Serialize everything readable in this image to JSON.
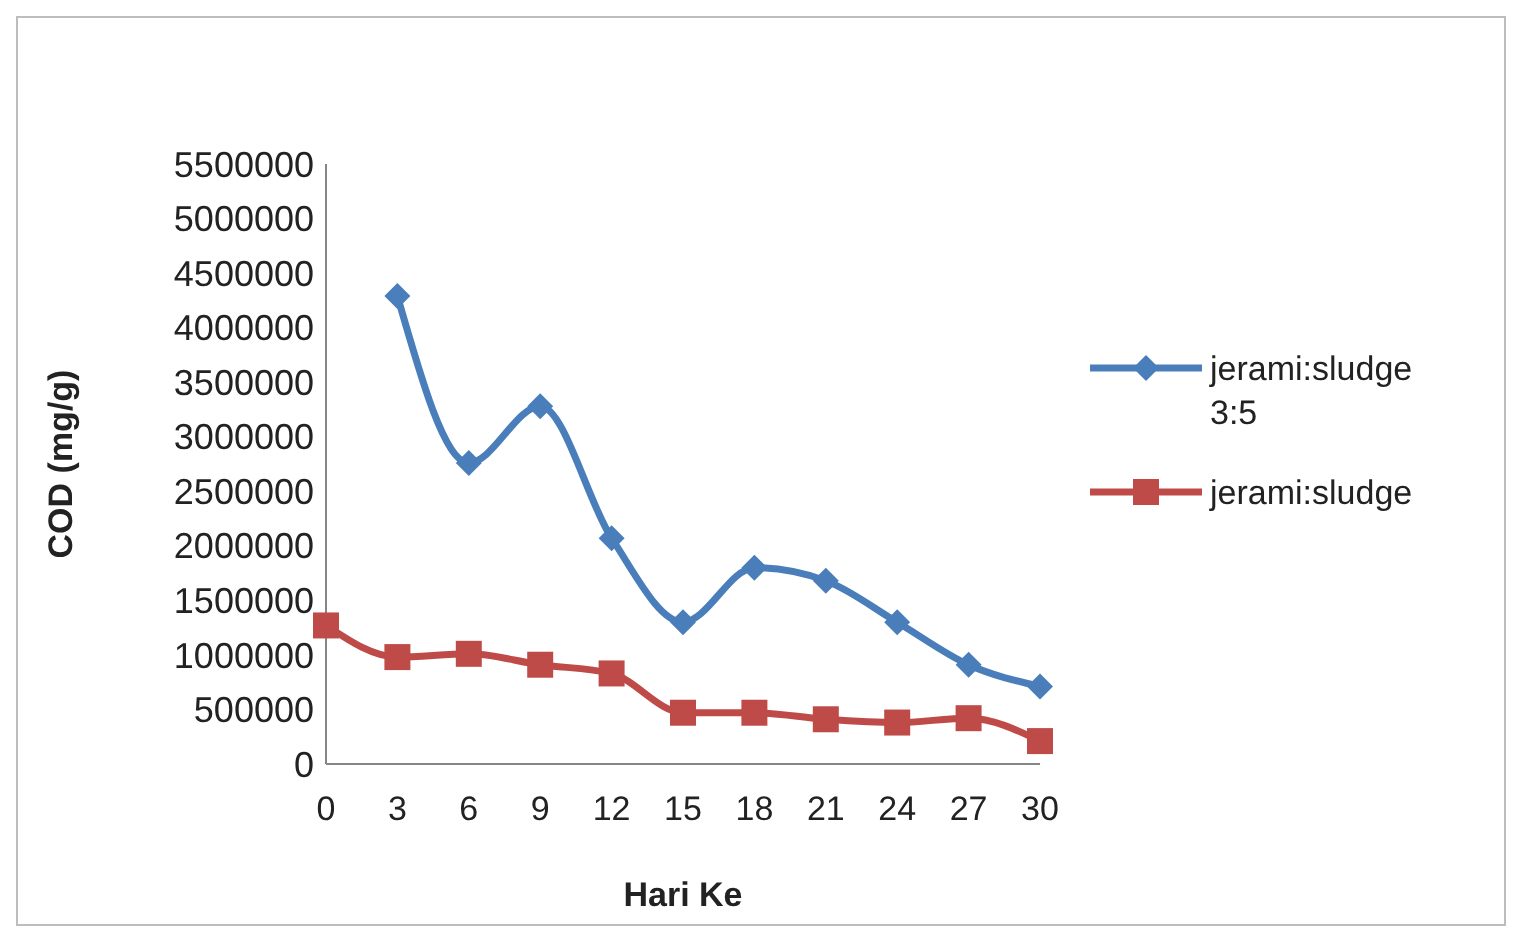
{
  "chart_data": {
    "type": "line",
    "xlabel": "Hari Ke",
    "ylabel": "COD (mg/g)",
    "categories": [
      "0",
      "3",
      "6",
      "9",
      "12",
      "15",
      "18",
      "21",
      "24",
      "27",
      "30"
    ],
    "ylim": [
      0,
      5500000
    ],
    "yticks": [
      0,
      500000,
      1000000,
      1500000,
      2000000,
      2500000,
      3000000,
      3500000,
      4000000,
      4500000,
      5000000,
      5500000
    ],
    "grid": false,
    "legend": "right",
    "series": [
      {
        "name": "jerami:sludge 3:5",
        "color": "#4a7ebb",
        "marker": "diamond",
        "values": [
          null,
          4290000,
          2760000,
          3280000,
          2070000,
          1300000,
          1800000,
          1680000,
          1300000,
          910000,
          710000
        ]
      },
      {
        "name": "jerami:sludge",
        "color": "#be4b48",
        "marker": "square",
        "values": [
          1270000,
          980000,
          1010000,
          910000,
          830000,
          470000,
          470000,
          410000,
          380000,
          420000,
          210000
        ]
      }
    ]
  }
}
